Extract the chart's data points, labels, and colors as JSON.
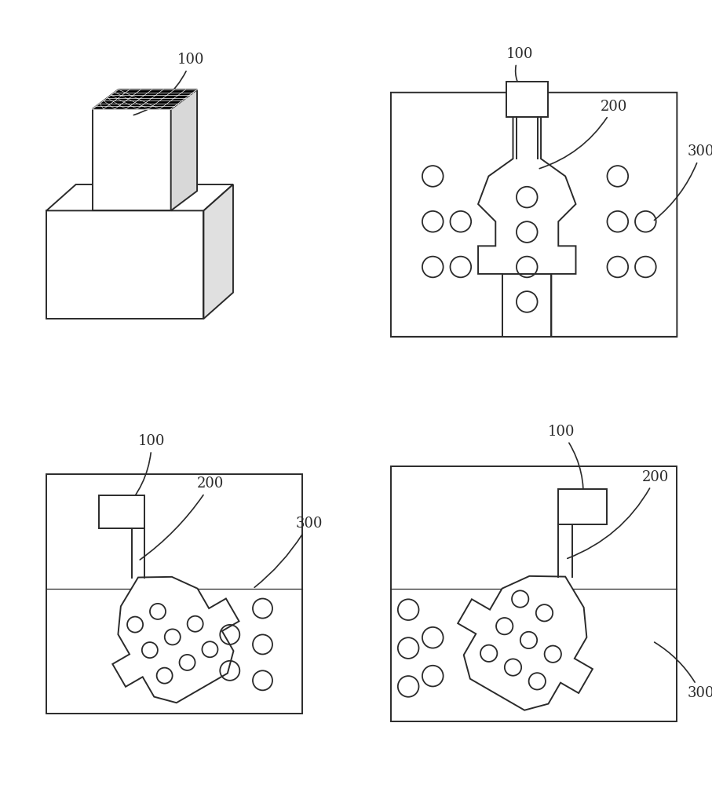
{
  "bg": "#ffffff",
  "lc": "#2a2a2a",
  "lw": 1.4,
  "fs": 13,
  "label_100": "100",
  "label_200": "200",
  "label_300": "300"
}
